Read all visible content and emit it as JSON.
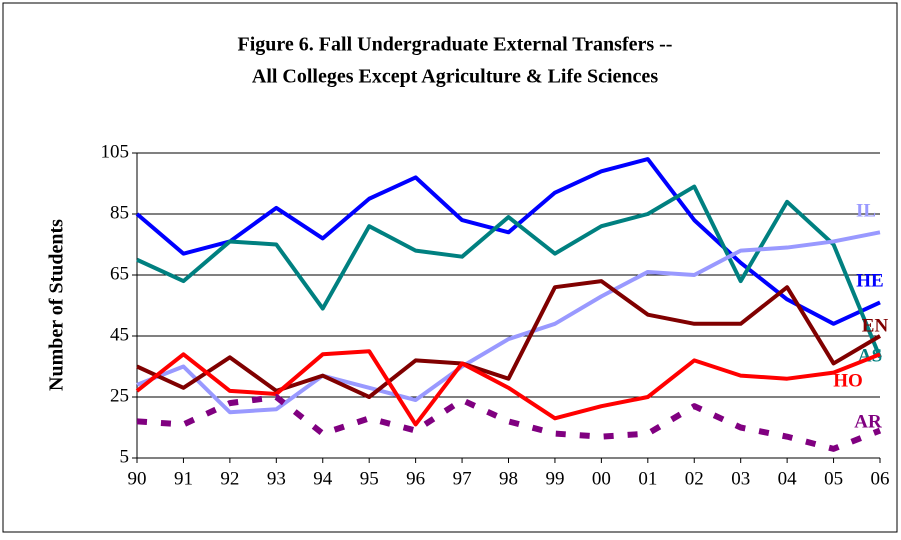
{
  "chart_data": {
    "type": "line",
    "title": [
      "Figure 6. Fall Undergraduate External Transfers --",
      "All Colleges Except Agriculture & Life Sciences"
    ],
    "y_label": "Number of Students",
    "categories": [
      "90",
      "91",
      "92",
      "93",
      "94",
      "95",
      "96",
      "97",
      "98",
      "99",
      "00",
      "01",
      "02",
      "03",
      "04",
      "05",
      "06"
    ],
    "ylim": [
      5,
      105
    ],
    "yticks": [
      5,
      25,
      45,
      65,
      85,
      105
    ],
    "grid": true,
    "series": [
      {
        "name": "HE",
        "color": "#0000ff",
        "values": [
          85,
          72,
          76,
          87,
          77,
          90,
          97,
          83,
          79,
          92,
          99,
          103,
          83,
          69,
          57,
          49,
          56
        ]
      },
      {
        "name": "AS",
        "color": "#008080",
        "values": [
          70,
          63,
          76,
          75,
          54,
          81,
          73,
          71,
          84,
          72,
          81,
          85,
          94,
          63,
          89,
          75,
          38
        ]
      },
      {
        "name": "IL",
        "color": "#9999ff",
        "values": [
          29,
          35,
          20,
          21,
          32,
          28,
          24,
          35,
          44,
          49,
          58,
          66,
          65,
          73,
          74,
          76,
          79
        ]
      },
      {
        "name": "EN",
        "color": "#800000",
        "values": [
          35,
          28,
          38,
          27,
          32,
          25,
          37,
          36,
          31,
          61,
          63,
          52,
          49,
          49,
          61,
          36,
          45
        ]
      },
      {
        "name": "HO",
        "color": "#ff0000",
        "values": [
          27,
          39,
          27,
          26,
          39,
          40,
          16,
          36,
          28,
          18,
          22,
          25,
          37,
          32,
          31,
          33,
          39
        ]
      },
      {
        "name": "AR",
        "color": "#800080",
        "dashed": true,
        "values": [
          17,
          16,
          23,
          25,
          13,
          18,
          14,
          24,
          17,
          13,
          12,
          13,
          22,
          15,
          12,
          8,
          14
        ]
      }
    ]
  }
}
